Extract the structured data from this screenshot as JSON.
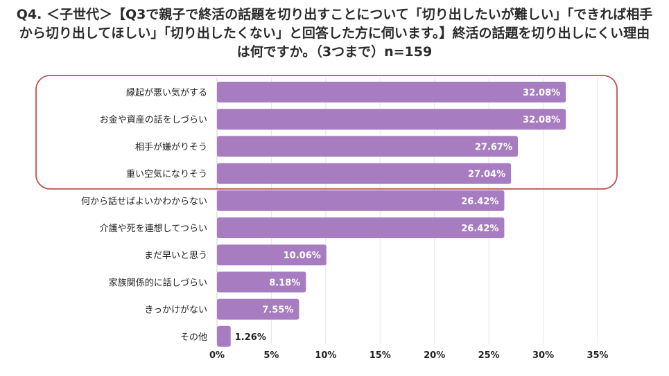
{
  "chart_data": {
    "type": "bar",
    "orientation": "horizontal",
    "title": "Q4. ＜子世代＞【Q3で親子で終活の話題を切り出すことについて「切り出したいが難しい」「できれば相手から切り出してほしい」「切り出したくない」と回答した方に伺います。】終活の話題を切り出しにくい理由は何ですか。（3つまで）n=159",
    "categories": [
      "縁起が悪い気がする",
      "お金や資産の話をしづらい",
      "相手が嫌がりそう",
      "重い空気になりそう",
      "何から話せばよいかわからない",
      "介護や死を連想してつらい",
      "まだ早いと思う",
      "家族関係的に話しづらい",
      "きっかけがない",
      "その他"
    ],
    "values": [
      32.08,
      32.08,
      27.67,
      27.04,
      26.42,
      26.42,
      10.06,
      8.18,
      7.55,
      1.26
    ],
    "value_labels": [
      "32.08%",
      "32.08%",
      "27.67%",
      "27.04%",
      "26.42%",
      "26.42%",
      "10.06%",
      "8.18%",
      "7.55%",
      "1.26%"
    ],
    "xlim": [
      0,
      35
    ],
    "x_ticks": [
      "0%",
      "5%",
      "10%",
      "15%",
      "20%",
      "25%",
      "30%",
      "35%"
    ],
    "grid": "vertical",
    "highlight": "top 4 categories outlined",
    "bar_color": "#a87cc0",
    "highlight_color": "#c0504d"
  }
}
